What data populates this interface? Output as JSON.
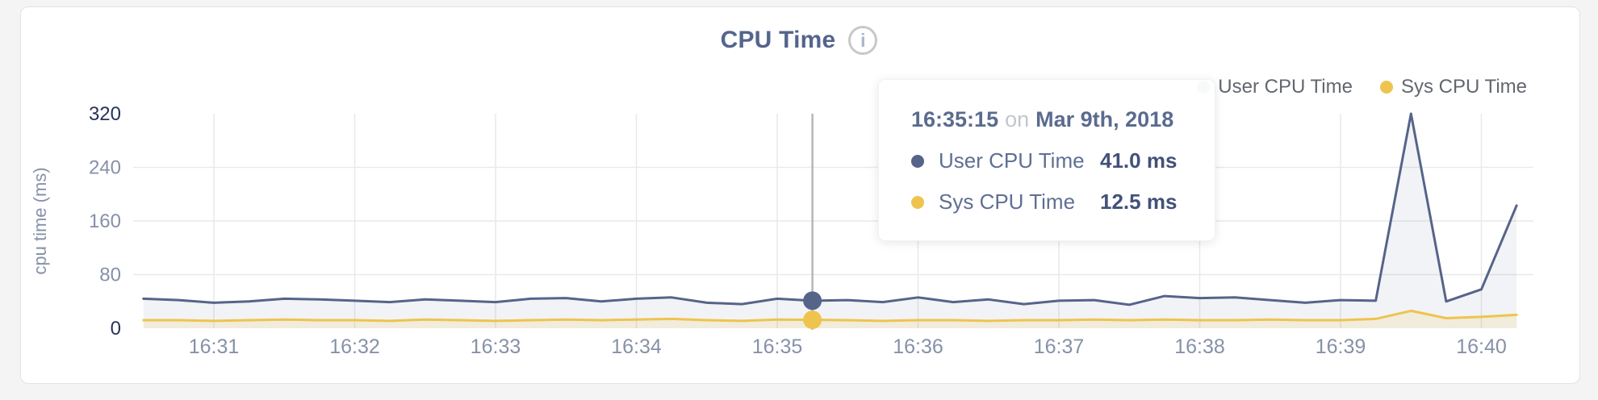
{
  "header": {
    "title": "CPU Time",
    "info_icon": "i"
  },
  "legend": {
    "items": [
      {
        "label": "User CPU Time"
      },
      {
        "label": "Sys CPU Time"
      }
    ]
  },
  "tooltip": {
    "time": "16:35:15",
    "connector": "on",
    "date": "Mar 9th, 2018",
    "rows": [
      {
        "label": "User CPU Time",
        "value": "41.0 ms"
      },
      {
        "label": "Sys CPU Time",
        "value": "12.5 ms"
      }
    ]
  },
  "hover": {
    "time": "16:35:15"
  },
  "colors": {
    "grid": "#e9e9e9",
    "hover_line": "#b6b6b6",
    "tick_label": "#8691a8",
    "tick_label_emphasis": "#26335b",
    "axis_title": "#8691a8"
  },
  "chart_data": {
    "type": "line",
    "title": "CPU Time",
    "xlabel": "",
    "ylabel": "cpu time (ms)",
    "ylim": [
      0,
      320
    ],
    "y_ticks": [
      0,
      80,
      160,
      240,
      320
    ],
    "y_ticks_emphasized": [
      0,
      320
    ],
    "x_ticks": [
      "16:31",
      "16:32",
      "16:33",
      "16:34",
      "16:35",
      "16:36",
      "16:37",
      "16:38",
      "16:39",
      "16:40"
    ],
    "grid": true,
    "legend_position": "top-right",
    "x": [
      "16:30:30",
      "16:30:45",
      "16:31:00",
      "16:31:15",
      "16:31:30",
      "16:31:45",
      "16:32:00",
      "16:32:15",
      "16:32:30",
      "16:32:45",
      "16:33:00",
      "16:33:15",
      "16:33:30",
      "16:33:45",
      "16:34:00",
      "16:34:15",
      "16:34:30",
      "16:34:45",
      "16:35:00",
      "16:35:15",
      "16:35:30",
      "16:35:45",
      "16:36:00",
      "16:36:15",
      "16:36:30",
      "16:36:45",
      "16:37:00",
      "16:37:15",
      "16:37:30",
      "16:37:45",
      "16:38:00",
      "16:38:15",
      "16:38:30",
      "16:38:45",
      "16:39:00",
      "16:39:15",
      "16:39:30",
      "16:39:45",
      "16:40:00",
      "16:40:15"
    ],
    "series": [
      {
        "name": "User CPU Time",
        "color": "#56648a",
        "fill": "rgba(86,100,138,0.08)",
        "values": [
          44,
          42,
          38,
          40,
          44,
          43,
          41,
          39,
          43,
          41,
          39,
          44,
          45,
          40,
          44,
          46,
          38,
          36,
          44,
          41,
          42,
          39,
          46,
          39,
          43,
          36,
          41,
          42,
          35,
          48,
          45,
          46,
          42,
          38,
          42,
          41,
          320,
          40,
          58,
          183
        ]
      },
      {
        "name": "Sys CPU Time",
        "color": "#eec44e",
        "fill": "rgba(238,196,78,0.16)",
        "values": [
          12,
          12,
          11,
          12,
          13,
          12,
          12,
          11,
          13,
          12,
          11,
          12,
          13,
          12,
          13,
          14,
          12,
          11,
          13,
          12.5,
          12,
          11,
          12,
          12,
          11,
          12,
          12,
          13,
          12,
          13,
          12,
          12,
          13,
          12,
          12,
          14,
          26,
          15,
          17,
          20
        ]
      }
    ],
    "hover_point": {
      "x": "16:35:15",
      "date": "Mar 9th, 2018",
      "values": [
        41.0,
        12.5
      ]
    }
  }
}
